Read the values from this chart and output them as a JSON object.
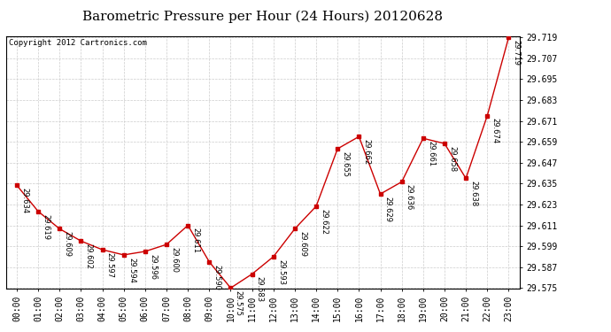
{
  "title": "Barometric Pressure per Hour (24 Hours) 20120628",
  "copyright": "Copyright 2012 Cartronics.com",
  "hours": [
    "00:00",
    "01:00",
    "02:00",
    "03:00",
    "04:00",
    "05:00",
    "06:00",
    "07:00",
    "08:00",
    "09:00",
    "10:00",
    "11:00",
    "12:00",
    "13:00",
    "14:00",
    "15:00",
    "16:00",
    "17:00",
    "18:00",
    "19:00",
    "20:00",
    "21:00",
    "22:00",
    "23:00"
  ],
  "values": [
    29.634,
    29.619,
    29.609,
    29.602,
    29.597,
    29.594,
    29.596,
    29.6,
    29.611,
    29.59,
    29.575,
    29.583,
    29.593,
    29.609,
    29.622,
    29.655,
    29.662,
    29.629,
    29.636,
    29.661,
    29.658,
    29.638,
    29.674,
    29.719
  ],
  "yticks": [
    29.575,
    29.587,
    29.599,
    29.611,
    29.623,
    29.635,
    29.647,
    29.659,
    29.671,
    29.683,
    29.695,
    29.707,
    29.719
  ],
  "line_color": "#cc0000",
  "marker_color": "#cc0000",
  "grid_color": "#cccccc",
  "bg_color": "#ffffff",
  "title_fontsize": 11,
  "tick_fontsize": 7,
  "annotation_fontsize": 6,
  "copyright_fontsize": 6.5
}
